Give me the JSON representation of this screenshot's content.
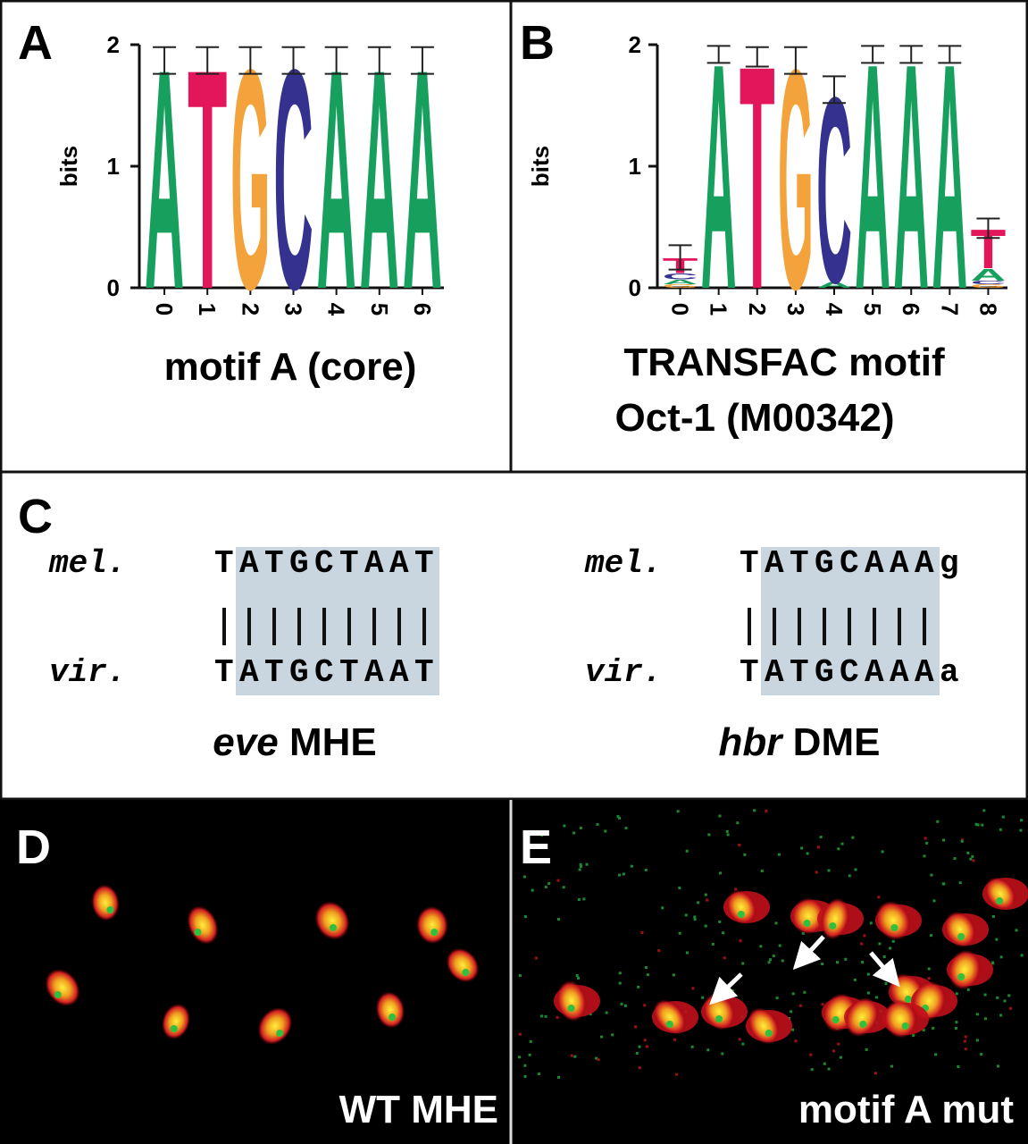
{
  "panels": {
    "a": {
      "label": "A",
      "caption": "motif A (core)",
      "logo": {
        "y_label": "bits",
        "ylim": [
          0,
          2
        ],
        "yticks": [
          0,
          1,
          2
        ],
        "positions": [
          {
            "label": 0,
            "error": 0.11,
            "letters": [
              {
                "letter": "A",
                "bits": 1.87
              }
            ]
          },
          {
            "label": 1,
            "error": 0.11,
            "letters": [
              {
                "letter": "T",
                "bits": 1.87
              }
            ]
          },
          {
            "label": 2,
            "error": 0.11,
            "letters": [
              {
                "letter": "G",
                "bits": 1.87
              }
            ]
          },
          {
            "label": 3,
            "error": 0.11,
            "letters": [
              {
                "letter": "C",
                "bits": 1.87
              }
            ]
          },
          {
            "label": 4,
            "error": 0.11,
            "letters": [
              {
                "letter": "A",
                "bits": 1.87
              }
            ]
          },
          {
            "label": 5,
            "error": 0.11,
            "letters": [
              {
                "letter": "A",
                "bits": 1.87
              }
            ]
          },
          {
            "label": 6,
            "error": 0.11,
            "letters": [
              {
                "letter": "A",
                "bits": 1.87
              }
            ]
          }
        ]
      }
    },
    "b": {
      "label": "B",
      "caption": [
        "TRANSFAC motif",
        "Oct-1 (M00342)"
      ],
      "logo": {
        "y_label": "bits",
        "ylim": [
          0,
          2
        ],
        "yticks": [
          0,
          1,
          2
        ],
        "positions": [
          {
            "label": 0,
            "error": 0.1,
            "letters": [
              {
                "letter": "G",
                "bits": 0.03
              },
              {
                "letter": "A",
                "bits": 0.04
              },
              {
                "letter": "C",
                "bits": 0.05
              },
              {
                "letter": "T",
                "bits": 0.13
              }
            ]
          },
          {
            "label": 1,
            "error": 0.07,
            "letters": [
              {
                "letter": "A",
                "bits": 1.92
              }
            ]
          },
          {
            "label": 2,
            "error": 0.08,
            "letters": [
              {
                "letter": "T",
                "bits": 1.9
              }
            ]
          },
          {
            "label": 3,
            "error": 0.11,
            "letters": [
              {
                "letter": "G",
                "bits": 1.87
              }
            ]
          },
          {
            "label": 4,
            "error": 0.11,
            "letters": [
              {
                "letter": "A",
                "bits": 0.05
              },
              {
                "letter": "C",
                "bits": 1.58
              }
            ]
          },
          {
            "label": 5,
            "error": 0.07,
            "letters": [
              {
                "letter": "A",
                "bits": 1.92
              }
            ]
          },
          {
            "label": 6,
            "error": 0.07,
            "letters": [
              {
                "letter": "A",
                "bits": 1.92
              }
            ]
          },
          {
            "label": 7,
            "error": 0.07,
            "letters": [
              {
                "letter": "A",
                "bits": 1.92
              }
            ]
          },
          {
            "label": 8,
            "error": 0.08,
            "letters": [
              {
                "letter": "G",
                "bits": 0.03
              },
              {
                "letter": "C",
                "bits": 0.03
              },
              {
                "letter": "A",
                "bits": 0.1
              },
              {
                "letter": "T",
                "bits": 0.33
              }
            ]
          }
        ]
      }
    },
    "c": {
      "label": "C",
      "alignments": [
        {
          "species": [
            "mel.",
            "vir."
          ],
          "sequences": [
            "TATGCTAAT",
            "TATGCTAAT"
          ],
          "highlight": [
            1,
            8
          ],
          "caption_italic": "eve",
          "caption": "MHE"
        },
        {
          "species": [
            "mel.",
            "vir."
          ],
          "sequences": [
            "TATGCAAAg",
            "TATGCAAAa"
          ],
          "highlight": [
            1,
            7
          ],
          "caption_italic": "hbr",
          "caption": "DME"
        }
      ]
    },
    "d": {
      "label": "D",
      "caption": "WT MHE"
    },
    "e": {
      "label": "E",
      "caption": "motif A mut"
    }
  },
  "colors": {
    "A": "#17a05d",
    "C": "#34318f",
    "G": "#f4a23c",
    "T": "#e3165b"
  }
}
